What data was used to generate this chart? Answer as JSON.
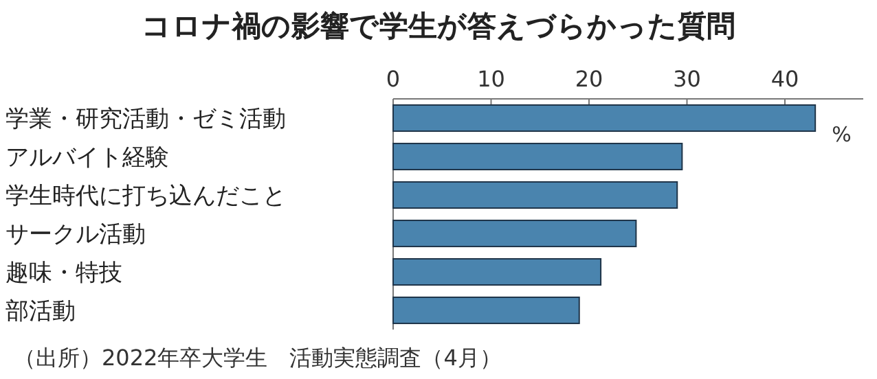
{
  "chart_data": {
    "type": "bar",
    "orientation": "horizontal",
    "title": "コロナ禍の影響で学生が答えづらかった質問",
    "xlabel": "%",
    "categories": [
      "学業・研究活動・ゼミ活動",
      "アルバイト経験",
      "学生時代に打ち込んだこと",
      "サークル活動",
      "趣味・特技",
      "部活動"
    ],
    "values": [
      43.1,
      29.5,
      29.0,
      24.8,
      21.2,
      19.0
    ],
    "color": "#4a84ae",
    "xlim": [
      0,
      48
    ],
    "xticks": [
      0,
      10,
      20,
      30,
      40
    ],
    "annotations": [
      "（出所）2022年卒大学生　活動実態調査（4月）"
    ]
  }
}
